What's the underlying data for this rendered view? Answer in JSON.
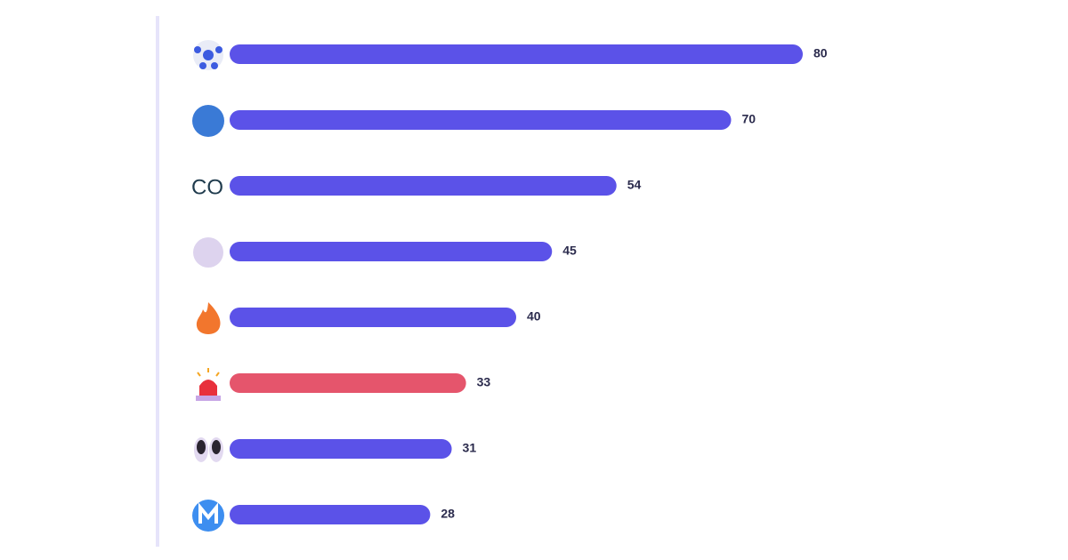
{
  "chart_data": {
    "type": "bar",
    "orientation": "horizontal",
    "categories": [
      null,
      null,
      "CO",
      null,
      null,
      null,
      null,
      null
    ],
    "values": [
      80,
      70,
      54,
      45,
      40,
      33,
      31,
      28
    ],
    "colors": [
      "#5b52e8",
      "#5b52e8",
      "#5b52e8",
      "#5b52e8",
      "#5b52e8",
      "#e5556c",
      "#5b52e8",
      "#5b52e8"
    ]
  }
}
